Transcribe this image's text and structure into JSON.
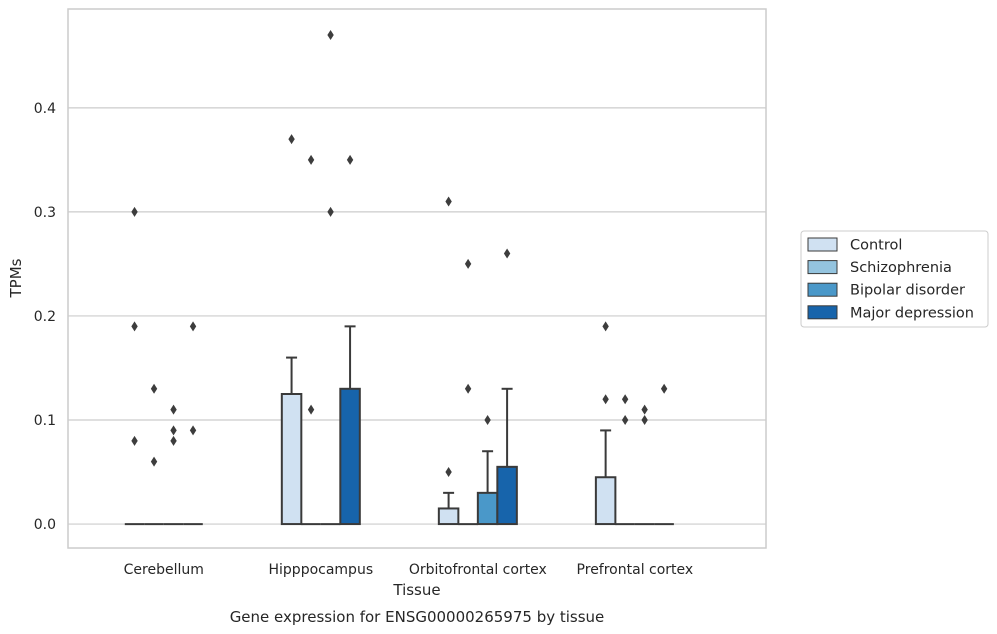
{
  "chart_data": {
    "type": "bar",
    "xlabel": "Tissue",
    "ylabel": "TPMs",
    "caption": "Gene expression for ENSG00000265975 by tissue",
    "ylim": [
      -0.023,
      0.495
    ],
    "yticks": [
      0.0,
      0.1,
      0.2,
      0.3,
      0.4
    ],
    "ytick_labels": [
      "0.0",
      "0.1",
      "0.2",
      "0.3",
      "0.4"
    ],
    "grid": "horizontal",
    "legend_position": "right",
    "categories": [
      "Cerebellum",
      "Hipppocampus",
      "Orbitofrontal cortex",
      "Prefrontal cortex"
    ],
    "series": [
      {
        "name": "Control",
        "color": "#d0e1f2",
        "values": [
          0.0,
          0.125,
          0.015,
          0.045
        ],
        "whisker_high": [
          0.0,
          0.16,
          0.03,
          0.09
        ],
        "outliers": [
          [
            0.3,
            0.19,
            0.08
          ],
          [
            0.37
          ],
          [
            0.31,
            0.05
          ],
          [
            0.19,
            0.12
          ]
        ]
      },
      {
        "name": "Schizophrenia",
        "color": "#94c4df",
        "values": [
          0.0,
          0.0,
          0.0,
          0.0
        ],
        "whisker_high": [
          0.0,
          0.0,
          0.0,
          0.0
        ],
        "outliers": [
          [
            0.13,
            0.06
          ],
          [
            0.35,
            0.11
          ],
          [
            0.25,
            0.13
          ],
          [
            0.12,
            0.1
          ]
        ]
      },
      {
        "name": "Bipolar disorder",
        "color": "#4a98c9",
        "values": [
          0.0,
          0.0,
          0.03,
          0.0
        ],
        "whisker_high": [
          0.0,
          0.0,
          0.07,
          0.0
        ],
        "outliers": [
          [
            0.11,
            0.09,
            0.08
          ],
          [
            0.47,
            0.3
          ],
          [
            0.1
          ],
          [
            0.11,
            0.1
          ]
        ]
      },
      {
        "name": "Major depression",
        "color": "#1764ab",
        "values": [
          0.0,
          0.13,
          0.055,
          0.0
        ],
        "whisker_high": [
          0.0,
          0.19,
          0.13,
          0.0
        ],
        "outliers": [
          [
            0.19,
            0.09
          ],
          [
            0.35
          ],
          [
            0.26
          ],
          [
            0.13
          ]
        ]
      }
    ]
  }
}
